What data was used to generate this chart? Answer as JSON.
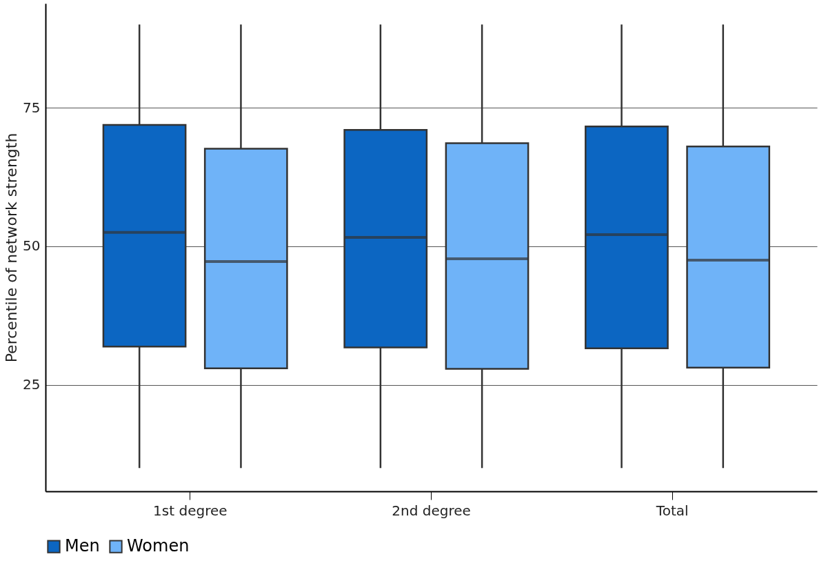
{
  "chart_data": {
    "type": "box",
    "ylabel": "Percentile of network strength",
    "categories": [
      "1st degree",
      "2nd degree",
      "Total"
    ],
    "series": [
      {
        "name": "Men",
        "color": "#0c66c2",
        "boxes": [
          {
            "low": 10,
            "q1": 31.9,
            "median": 52.5,
            "q3": 71.9,
            "high": 90
          },
          {
            "low": 10,
            "q1": 31.75,
            "median": 51.6,
            "q3": 71.0,
            "high": 90
          },
          {
            "low": 10,
            "q1": 31.6,
            "median": 52.1,
            "q3": 71.6,
            "high": 90
          }
        ]
      },
      {
        "name": "Women",
        "color": "#6fb3f8",
        "boxes": [
          {
            "low": 10,
            "q1": 28.0,
            "median": 47.25,
            "q3": 67.6,
            "high": 90
          },
          {
            "low": 10,
            "q1": 27.9,
            "median": 47.75,
            "q3": 68.6,
            "high": 90
          },
          {
            "low": 10,
            "q1": 28.1,
            "median": 47.5,
            "q3": 68.0,
            "high": 90
          }
        ]
      }
    ],
    "ylim": [
      5.8,
      93.8
    ],
    "yticks": [
      25,
      50,
      75
    ],
    "grid": "y",
    "legend": "bottom left"
  }
}
